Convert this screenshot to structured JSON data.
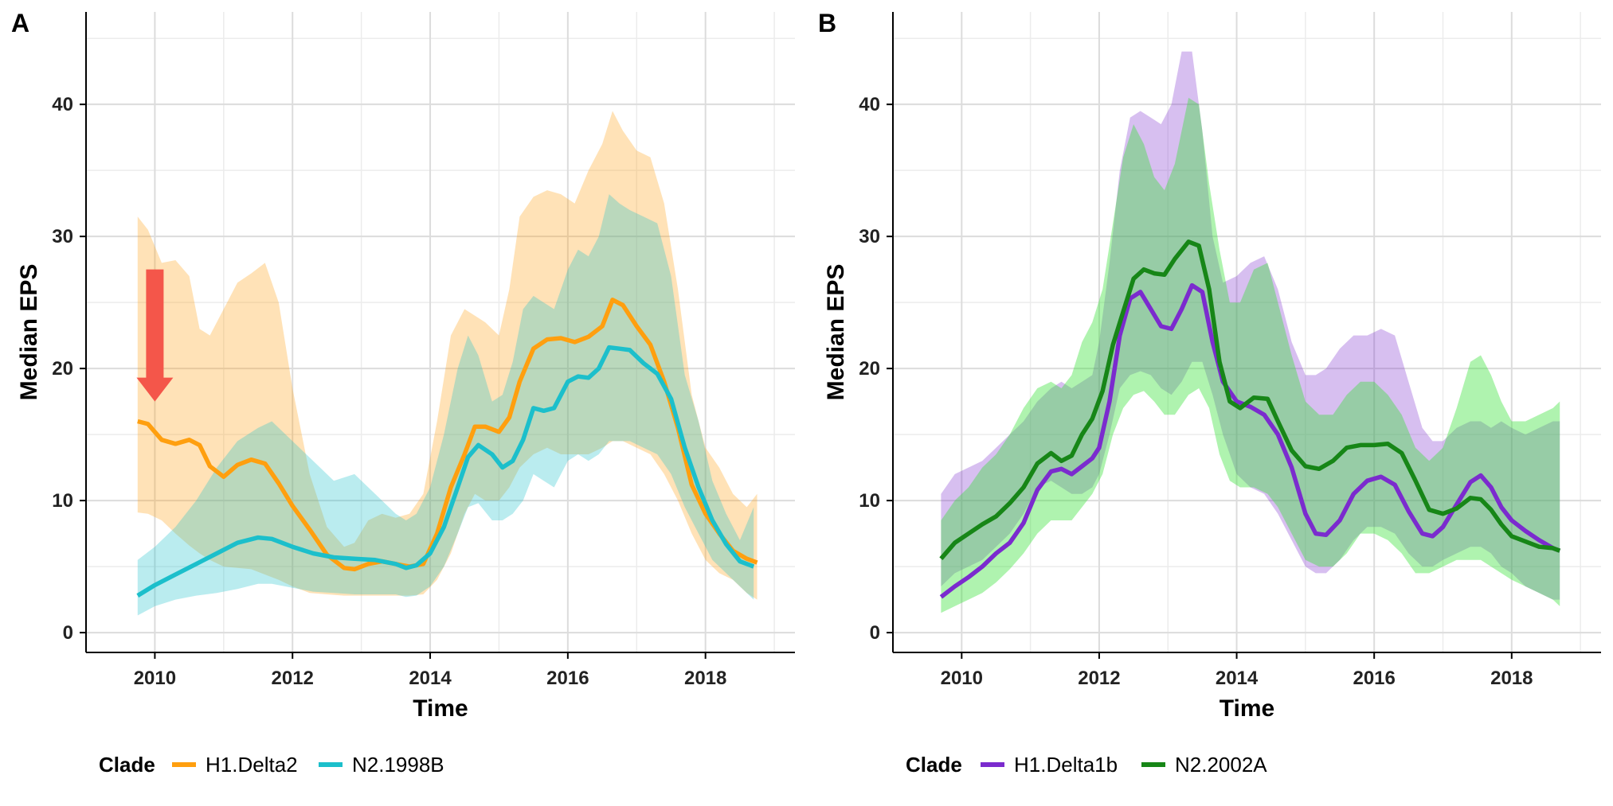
{
  "colors": {
    "H1.Delta2": "#FF9F0F",
    "N2.1998B": "#1CBFCB",
    "H1.Delta1b": "#7B2BCE",
    "N2.2002A": "#178617",
    "arrow": "#F4564A"
  },
  "chart_data": [
    {
      "panel": "A",
      "type": "line",
      "xlabel": "Time",
      "ylabel": "Median EPS",
      "xlim": [
        2009,
        2019.3
      ],
      "ylim": [
        -1.5,
        47
      ],
      "xticks": [
        "2010",
        "2012",
        "2014",
        "2016",
        "2018"
      ],
      "yticks": [
        "0",
        "10",
        "20",
        "30",
        "40"
      ],
      "grid": true,
      "legend": {
        "position": "bottom",
        "title": "Clade"
      },
      "annotation": {
        "type": "arrow",
        "x": 2010,
        "y_from": 27.5,
        "y_to": 17.5,
        "color": "#F4564A"
      },
      "series": [
        {
          "name": "H1.Delta2",
          "color": "#FF9F0F",
          "x": [
            2009.75,
            2009.9,
            2010.1,
            2010.3,
            2010.5,
            2010.65,
            2010.8,
            2011.0,
            2011.2,
            2011.4,
            2011.6,
            2011.8,
            2012.0,
            2012.25,
            2012.5,
            2012.75,
            2012.9,
            2013.1,
            2013.3,
            2013.5,
            2013.7,
            2013.9,
            2014.1,
            2014.3,
            2014.5,
            2014.65,
            2014.8,
            2015.0,
            2015.15,
            2015.3,
            2015.5,
            2015.7,
            2015.9,
            2016.1,
            2016.3,
            2016.5,
            2016.65,
            2016.8,
            2017.0,
            2017.2,
            2017.4,
            2017.6,
            2017.8,
            2018.0,
            2018.2,
            2018.4,
            2018.6,
            2018.75
          ],
          "y": [
            16,
            15.8,
            14.6,
            14.3,
            14.6,
            14.2,
            12.6,
            11.8,
            12.7,
            13.1,
            12.8,
            11.3,
            9.6,
            7.8,
            5.9,
            4.9,
            4.8,
            5.2,
            5.4,
            5.2,
            5,
            5.2,
            7.5,
            11,
            13.5,
            15.6,
            15.6,
            15.2,
            16.3,
            19,
            21.5,
            22.2,
            22.3,
            22,
            22.4,
            23.2,
            25.2,
            24.8,
            23.2,
            21.8,
            19,
            15.5,
            11.2,
            9,
            7.5,
            6.2,
            5.6,
            5.3
          ],
          "lower": [
            9.1,
            9.0,
            8.5,
            7.5,
            6.6,
            6.0,
            5.5,
            5.0,
            4.9,
            4.8,
            4.4,
            4.0,
            3.5,
            3.0,
            2.9,
            2.8,
            2.8,
            2.8,
            2.8,
            2.8,
            2.8,
            2.9,
            4.0,
            6.0,
            9.0,
            10.5,
            10.0,
            10.0,
            11.0,
            12.5,
            13.5,
            14.0,
            13.5,
            13.5,
            13.5,
            14.0,
            14.5,
            14.5,
            14.0,
            13.5,
            12.0,
            10.0,
            7.5,
            5.5,
            4.5,
            4.0,
            3.0,
            2.5
          ],
          "upper": [
            31.5,
            30.5,
            28.0,
            28.2,
            27.0,
            23.0,
            22.5,
            24.5,
            26.5,
            27.2,
            28.0,
            25.0,
            18.5,
            12.0,
            8.0,
            6.5,
            6.8,
            8.5,
            9.0,
            8.7,
            9.0,
            10.5,
            16.0,
            22.5,
            24.5,
            24.0,
            23.5,
            22.5,
            26.0,
            31.5,
            33.0,
            33.5,
            33.2,
            32.5,
            35.0,
            37.0,
            39.5,
            38.0,
            36.5,
            36.0,
            32.5,
            26.0,
            18.0,
            14.0,
            12.5,
            10.5,
            9.5,
            10.5
          ]
        },
        {
          "name": "N2.1998B",
          "color": "#1CBFCB",
          "x": [
            2009.75,
            2010.0,
            2010.3,
            2010.6,
            2010.9,
            2011.2,
            2011.5,
            2011.7,
            2012.0,
            2012.3,
            2012.6,
            2012.9,
            2013.2,
            2013.5,
            2013.65,
            2013.8,
            2014.0,
            2014.2,
            2014.4,
            2014.55,
            2014.7,
            2014.9,
            2015.05,
            2015.2,
            2015.35,
            2015.5,
            2015.65,
            2015.8,
            2016.0,
            2016.15,
            2016.3,
            2016.45,
            2016.6,
            2016.75,
            2016.9,
            2017.1,
            2017.3,
            2017.5,
            2017.7,
            2017.9,
            2018.1,
            2018.3,
            2018.5,
            2018.7
          ],
          "y": [
            2.8,
            3.6,
            4.4,
            5.2,
            6.0,
            6.8,
            7.2,
            7.1,
            6.5,
            6.0,
            5.7,
            5.6,
            5.5,
            5.2,
            4.9,
            5.1,
            6.0,
            8.0,
            11.0,
            13.3,
            14.2,
            13.5,
            12.5,
            13.0,
            14.6,
            17.0,
            16.8,
            17.0,
            19.0,
            19.4,
            19.3,
            20.0,
            21.6,
            21.5,
            21.4,
            20.4,
            19.6,
            17.7,
            14.0,
            11.0,
            8.5,
            6.7,
            5.4,
            5.0
          ],
          "lower": [
            1.3,
            2.0,
            2.5,
            2.8,
            3.0,
            3.3,
            3.7,
            3.7,
            3.4,
            3.1,
            3.0,
            2.9,
            2.9,
            2.9,
            2.7,
            2.8,
            3.5,
            5.0,
            7.5,
            9.5,
            9.8,
            8.5,
            8.5,
            9.0,
            10.0,
            12.0,
            11.5,
            11.0,
            13.0,
            13.5,
            13.0,
            13.5,
            14.5,
            14.5,
            14.5,
            14.0,
            13.5,
            12.0,
            9.5,
            7.5,
            5.5,
            4.5,
            3.5,
            2.5
          ],
          "upper": [
            5.5,
            6.5,
            8.0,
            10.0,
            12.5,
            14.5,
            15.5,
            16.0,
            14.5,
            13.0,
            11.5,
            12.0,
            10.5,
            9.0,
            8.5,
            9.0,
            11.0,
            15.0,
            20.0,
            22.5,
            21.0,
            17.5,
            18.0,
            20.5,
            24.5,
            25.5,
            25.0,
            24.5,
            27.5,
            29.0,
            28.5,
            30.0,
            33.2,
            32.5,
            32.0,
            31.5,
            31.0,
            27.0,
            19.5,
            16.0,
            11.5,
            9.0,
            7.0,
            9.5
          ]
        }
      ]
    },
    {
      "panel": "B",
      "type": "line",
      "xlabel": "Time",
      "ylabel": "Median EPS",
      "xlim": [
        2009,
        2019.3
      ],
      "ylim": [
        -1.5,
        47
      ],
      "xticks": [
        "2010",
        "2012",
        "2014",
        "2016",
        "2018"
      ],
      "yticks": [
        "0",
        "10",
        "20",
        "30",
        "40"
      ],
      "grid": true,
      "legend": {
        "position": "bottom",
        "title": "Clade"
      },
      "series": [
        {
          "name": "H1.Delta1b",
          "color": "#7B2BCE",
          "x": [
            2009.7,
            2009.9,
            2010.1,
            2010.3,
            2010.5,
            2010.7,
            2010.9,
            2011.1,
            2011.3,
            2011.45,
            2011.6,
            2011.75,
            2011.9,
            2012.0,
            2012.15,
            2012.3,
            2012.45,
            2012.6,
            2012.75,
            2012.9,
            2013.05,
            2013.2,
            2013.35,
            2013.5,
            2013.65,
            2013.8,
            2014.0,
            2014.2,
            2014.4,
            2014.6,
            2014.8,
            2015.0,
            2015.15,
            2015.3,
            2015.5,
            2015.7,
            2015.9,
            2016.1,
            2016.3,
            2016.5,
            2016.7,
            2016.85,
            2017.0,
            2017.2,
            2017.4,
            2017.55,
            2017.7,
            2017.85,
            2018.0,
            2018.2,
            2018.4,
            2018.6,
            2018.7
          ],
          "y": [
            2.7,
            3.5,
            4.2,
            5.0,
            6.0,
            6.8,
            8.3,
            10.8,
            12.2,
            12.4,
            12.0,
            12.6,
            13.2,
            14.0,
            17.5,
            22.5,
            25.3,
            25.8,
            24.5,
            23.2,
            23.0,
            24.5,
            26.3,
            25.8,
            22.0,
            19.0,
            17.5,
            17.1,
            16.5,
            15.0,
            12.5,
            9.0,
            7.5,
            7.4,
            8.5,
            10.5,
            11.5,
            11.8,
            11.2,
            9.2,
            7.5,
            7.3,
            8.0,
            9.7,
            11.4,
            11.9,
            11.0,
            9.5,
            8.5,
            7.7,
            7.0,
            6.4,
            6.2
          ],
          "lower": [
            3.5,
            4.5,
            5.0,
            5.5,
            6.5,
            7.5,
            9.0,
            11.0,
            11.5,
            11.0,
            10.5,
            10.5,
            11.0,
            12.0,
            15.0,
            18.5,
            19.5,
            19.8,
            19.5,
            18.5,
            18.0,
            19.0,
            20.5,
            20.5,
            18.0,
            15.0,
            12.0,
            11.0,
            10.5,
            9.0,
            7.0,
            5.0,
            4.5,
            4.5,
            5.5,
            7.0,
            8.0,
            8.0,
            7.5,
            6.0,
            5.0,
            5.0,
            5.5,
            6.0,
            6.5,
            6.5,
            6.0,
            5.0,
            4.5,
            3.5,
            3.0,
            2.5,
            2.5
          ],
          "upper": [
            10.5,
            12.0,
            12.5,
            13.0,
            14.0,
            15.0,
            16.0,
            17.5,
            18.5,
            19.0,
            18.5,
            19.0,
            19.5,
            22.0,
            28.0,
            35.0,
            39.0,
            39.5,
            39.0,
            38.5,
            40.0,
            44.0,
            44.0,
            38.0,
            30.0,
            26.5,
            27.0,
            28.0,
            28.5,
            26.0,
            22.0,
            19.5,
            19.5,
            20.0,
            21.5,
            22.5,
            22.5,
            23.0,
            22.5,
            19.0,
            15.5,
            14.5,
            14.5,
            15.5,
            16.0,
            16.0,
            15.5,
            16.0,
            15.5,
            15.0,
            15.5,
            16.0,
            16.0
          ]
        },
        {
          "name": "N2.2002A",
          "color": "#178617",
          "x": [
            2009.7,
            2009.9,
            2010.1,
            2010.3,
            2010.5,
            2010.7,
            2010.9,
            2011.1,
            2011.3,
            2011.45,
            2011.6,
            2011.75,
            2011.9,
            2012.05,
            2012.2,
            2012.35,
            2012.5,
            2012.65,
            2012.8,
            2012.95,
            2013.1,
            2013.3,
            2013.45,
            2013.6,
            2013.75,
            2013.9,
            2014.05,
            2014.25,
            2014.45,
            2014.6,
            2014.8,
            2015.0,
            2015.2,
            2015.4,
            2015.6,
            2015.8,
            2016.0,
            2016.2,
            2016.4,
            2016.6,
            2016.8,
            2017.0,
            2017.2,
            2017.4,
            2017.55,
            2017.7,
            2017.85,
            2018.0,
            2018.2,
            2018.4,
            2018.6,
            2018.7
          ],
          "y": [
            5.6,
            6.8,
            7.5,
            8.2,
            8.8,
            9.8,
            11.0,
            12.8,
            13.6,
            13.0,
            13.4,
            15.0,
            16.2,
            18.3,
            21.8,
            24.3,
            26.8,
            27.5,
            27.2,
            27.1,
            28.3,
            29.6,
            29.3,
            26.0,
            20.5,
            17.5,
            17.0,
            17.8,
            17.7,
            16.0,
            13.8,
            12.6,
            12.4,
            13.0,
            14.0,
            14.2,
            14.2,
            14.3,
            13.6,
            11.5,
            9.3,
            9.0,
            9.4,
            10.2,
            10.1,
            9.3,
            8.2,
            7.3,
            6.9,
            6.5,
            6.4,
            6.2
          ],
          "lower": [
            1.5,
            2.0,
            2.5,
            3.0,
            3.8,
            4.8,
            6.0,
            7.5,
            8.5,
            8.5,
            8.5,
            9.5,
            10.5,
            12.0,
            15.0,
            17.0,
            18.0,
            18.3,
            17.5,
            16.5,
            16.5,
            18.0,
            18.5,
            17.0,
            13.5,
            11.5,
            11.0,
            11.0,
            10.5,
            9.5,
            7.5,
            5.5,
            5.0,
            5.0,
            6.0,
            7.5,
            7.5,
            7.0,
            6.0,
            4.5,
            4.5,
            5.0,
            5.5,
            5.5,
            5.5,
            5.0,
            4.5,
            4.0,
            3.5,
            3.0,
            2.5,
            2.0
          ],
          "upper": [
            8.5,
            10.0,
            11.0,
            12.5,
            13.5,
            15.0,
            17.0,
            18.5,
            19.0,
            18.5,
            19.5,
            22.0,
            23.5,
            26.0,
            31.0,
            36.0,
            38.5,
            37.0,
            34.5,
            33.5,
            35.5,
            40.5,
            40.0,
            34.0,
            29.0,
            25.0,
            25.0,
            27.5,
            28.0,
            25.0,
            21.0,
            17.5,
            16.5,
            16.5,
            18.0,
            19.0,
            19.0,
            18.0,
            16.5,
            14.0,
            13.0,
            14.0,
            17.0,
            20.5,
            21.0,
            19.5,
            17.5,
            16.0,
            16.0,
            16.5,
            17.0,
            17.5
          ]
        }
      ]
    }
  ]
}
